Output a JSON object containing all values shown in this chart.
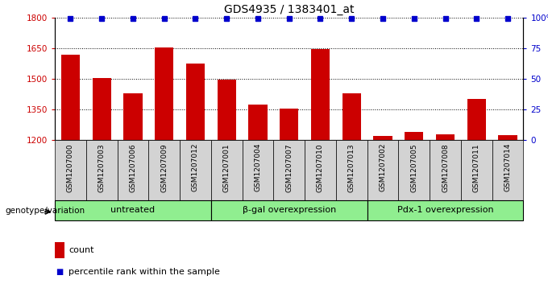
{
  "title": "GDS4935 / 1383401_at",
  "samples": [
    "GSM1207000",
    "GSM1207003",
    "GSM1207006",
    "GSM1207009",
    "GSM1207012",
    "GSM1207001",
    "GSM1207004",
    "GSM1207007",
    "GSM1207010",
    "GSM1207013",
    "GSM1207002",
    "GSM1207005",
    "GSM1207008",
    "GSM1207011",
    "GSM1207014"
  ],
  "bar_values": [
    1620,
    1505,
    1430,
    1655,
    1575,
    1495,
    1375,
    1355,
    1645,
    1430,
    1220,
    1240,
    1230,
    1400,
    1225
  ],
  "percentile_values": [
    99,
    99,
    99,
    99,
    99,
    99,
    99,
    99,
    99,
    99,
    99,
    99,
    99,
    99,
    99
  ],
  "bar_color": "#cc0000",
  "dot_color": "#0000cc",
  "ylim_left": [
    1200,
    1800
  ],
  "ylim_right": [
    0,
    100
  ],
  "yticks_left": [
    1200,
    1350,
    1500,
    1650,
    1800
  ],
  "yticks_right": [
    0,
    25,
    50,
    75,
    100
  ],
  "groups": [
    {
      "label": "untreated",
      "start": 0,
      "end": 5
    },
    {
      "label": "β-gal overexpression",
      "start": 5,
      "end": 10
    },
    {
      "label": "Pdx-1 overexpression",
      "start": 10,
      "end": 15
    }
  ],
  "group_color": "#90ee90",
  "bar_width": 0.6,
  "bar_color_red": "#cc0000",
  "dot_color_blue": "#0000cc",
  "tick_label_bg": "#d3d3d3",
  "legend_count_label": "count",
  "legend_percentile_label": "percentile rank within the sample",
  "genotype_label": "genotype/variation"
}
